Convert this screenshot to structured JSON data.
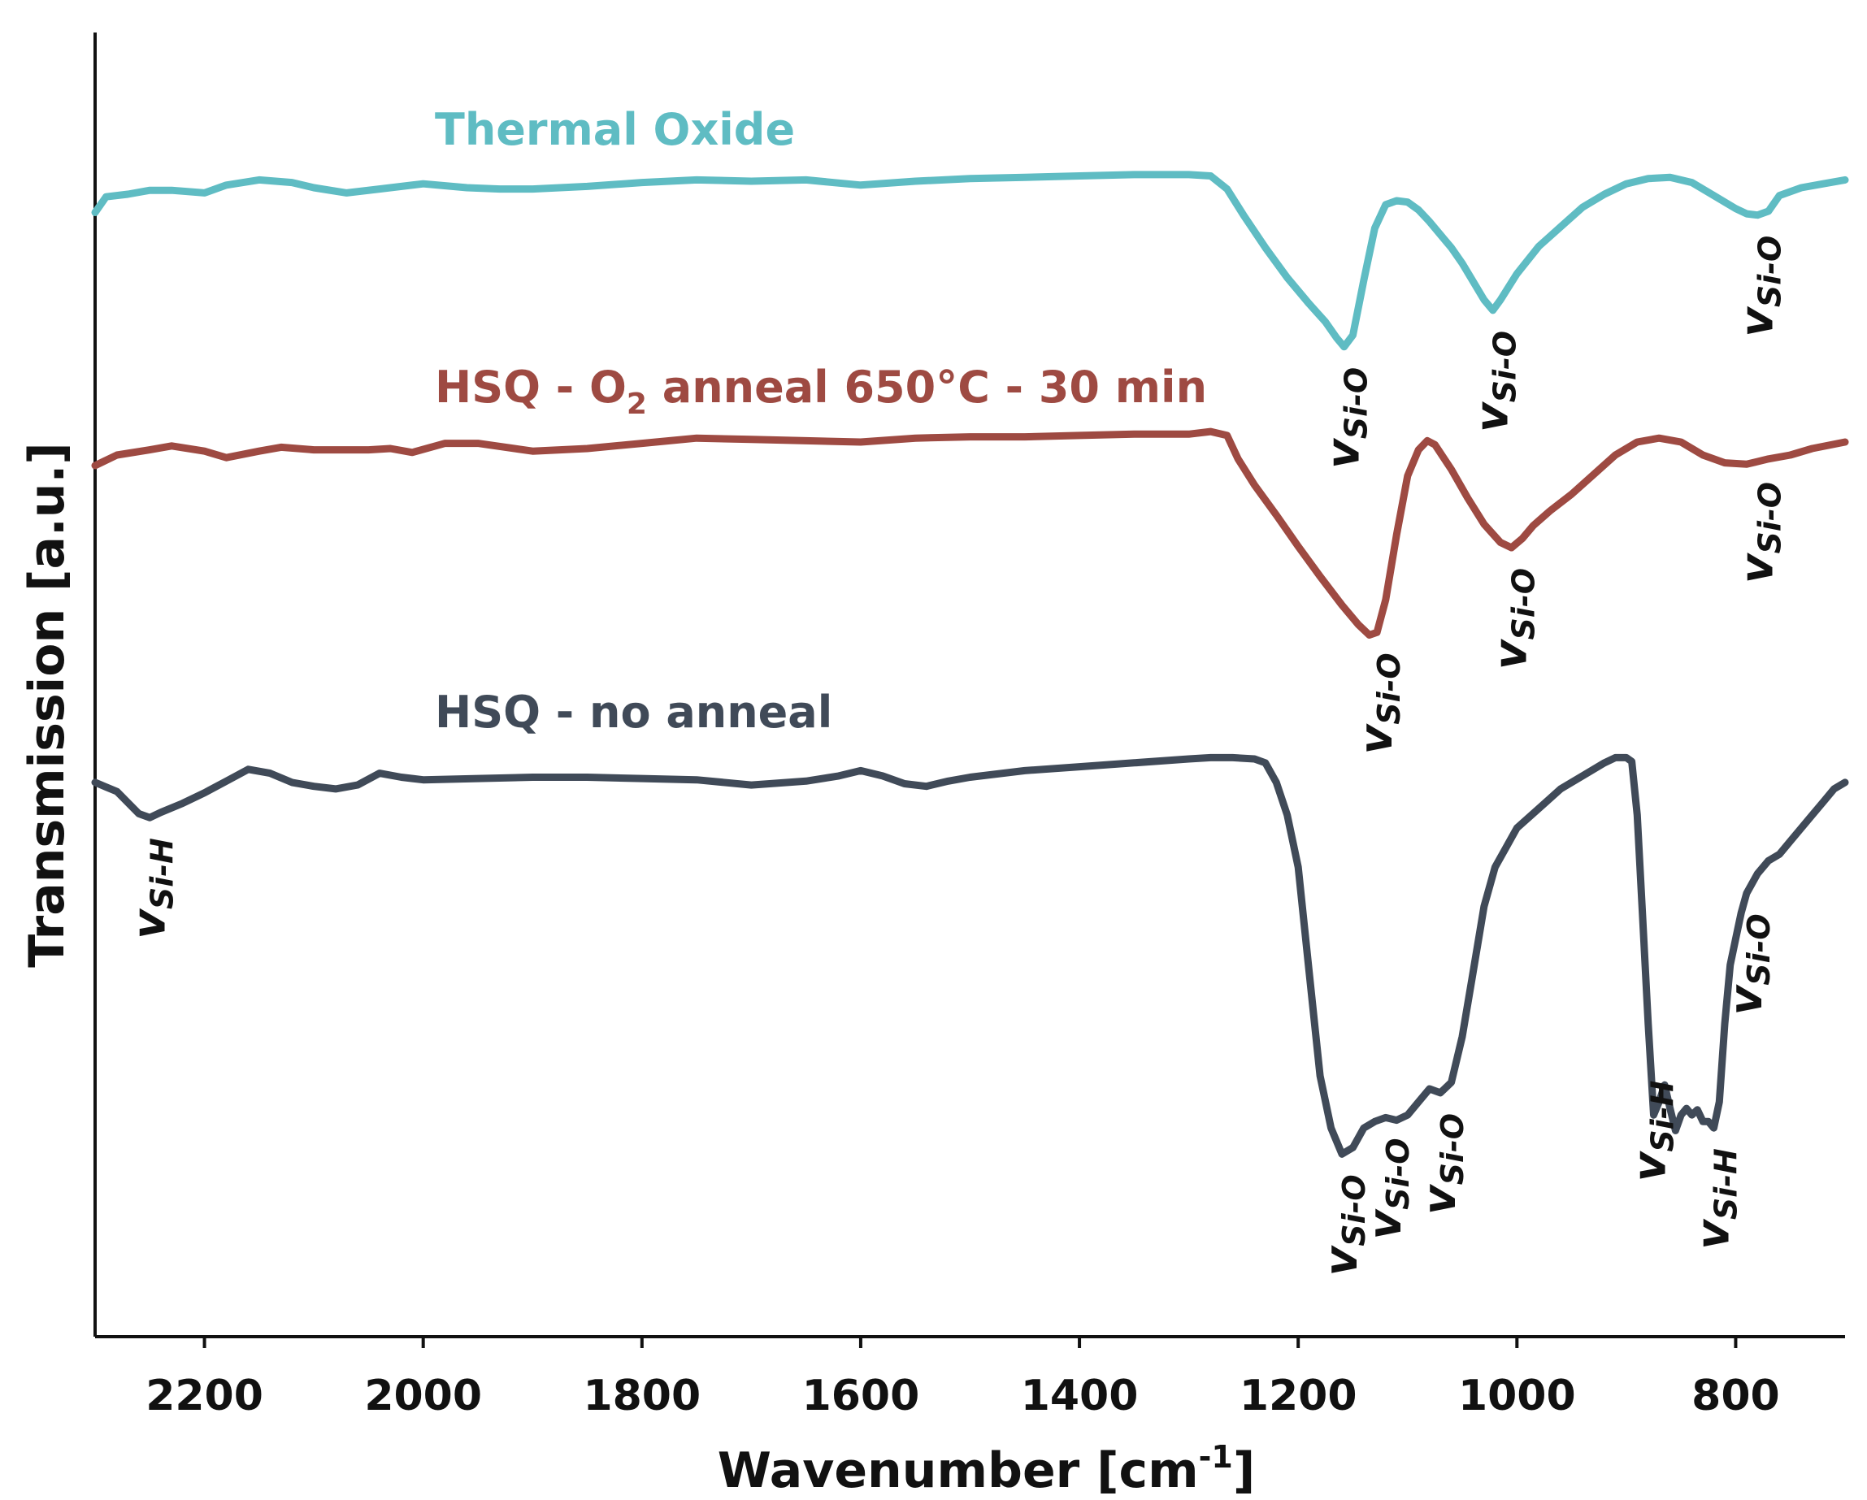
{
  "chart_data": {
    "type": "line",
    "xlabel": "Wavenumber [cm",
    "xlabel_sup": "-1",
    "xlabel_end": "]",
    "ylabel": "Transmission [a.u.]",
    "xlim": [
      2300,
      700
    ],
    "ylim": [
      0,
      100
    ],
    "xticks": [
      2200,
      2000,
      1800,
      1600,
      1400,
      1200,
      1000,
      800
    ],
    "xtick_labels": [
      "2200",
      "2000",
      "1800",
      "1600",
      "1400",
      "1200",
      "1000",
      "800"
    ],
    "series": [
      {
        "name": "Thermal Oxide",
        "label_parts": [
          "Thermal Oxide"
        ],
        "color": "#5fbcc3",
        "points": [
          [
            2300,
            86.2
          ],
          [
            2290,
            87.4
          ],
          [
            2270,
            87.6
          ],
          [
            2250,
            87.9
          ],
          [
            2230,
            87.9
          ],
          [
            2200,
            87.7
          ],
          [
            2180,
            88.3
          ],
          [
            2150,
            88.7
          ],
          [
            2120,
            88.5
          ],
          [
            2100,
            88.1
          ],
          [
            2070,
            87.7
          ],
          [
            2040,
            88.0
          ],
          [
            2000,
            88.4
          ],
          [
            1960,
            88.1
          ],
          [
            1930,
            88.0
          ],
          [
            1900,
            88.0
          ],
          [
            1850,
            88.2
          ],
          [
            1800,
            88.5
          ],
          [
            1750,
            88.7
          ],
          [
            1700,
            88.6
          ],
          [
            1650,
            88.7
          ],
          [
            1600,
            88.3
          ],
          [
            1550,
            88.6
          ],
          [
            1500,
            88.8
          ],
          [
            1450,
            88.9
          ],
          [
            1400,
            89.0
          ],
          [
            1350,
            89.1
          ],
          [
            1300,
            89.1
          ],
          [
            1280,
            89.0
          ],
          [
            1265,
            88.0
          ],
          [
            1250,
            86.0
          ],
          [
            1230,
            83.5
          ],
          [
            1210,
            81.2
          ],
          [
            1190,
            79.2
          ],
          [
            1175,
            77.8
          ],
          [
            1165,
            76.6
          ],
          [
            1158,
            75.9
          ],
          [
            1150,
            76.8
          ],
          [
            1140,
            81.0
          ],
          [
            1130,
            85.0
          ],
          [
            1120,
            86.8
          ],
          [
            1110,
            87.1
          ],
          [
            1100,
            87.0
          ],
          [
            1090,
            86.4
          ],
          [
            1080,
            85.5
          ],
          [
            1070,
            84.5
          ],
          [
            1060,
            83.5
          ],
          [
            1050,
            82.3
          ],
          [
            1040,
            80.9
          ],
          [
            1030,
            79.5
          ],
          [
            1022,
            78.7
          ],
          [
            1015,
            79.5
          ],
          [
            1000,
            81.5
          ],
          [
            980,
            83.6
          ],
          [
            960,
            85.1
          ],
          [
            940,
            86.6
          ],
          [
            920,
            87.6
          ],
          [
            900,
            88.4
          ],
          [
            880,
            88.8
          ],
          [
            860,
            88.9
          ],
          [
            840,
            88.5
          ],
          [
            820,
            87.5
          ],
          [
            800,
            86.5
          ],
          [
            790,
            86.1
          ],
          [
            780,
            86.0
          ],
          [
            770,
            86.3
          ],
          [
            760,
            87.5
          ],
          [
            740,
            88.1
          ],
          [
            720,
            88.4
          ],
          [
            700,
            88.7
          ]
        ]
      },
      {
        "name": "HSQ - O2 anneal 650°C - 30 min",
        "label_parts": [
          "HSQ - O",
          "2",
          " anneal 650°C - 30 min"
        ],
        "color": "#9e4a42",
        "points": [
          [
            2300,
            66.8
          ],
          [
            2280,
            67.6
          ],
          [
            2250,
            68.0
          ],
          [
            2230,
            68.3
          ],
          [
            2200,
            67.9
          ],
          [
            2180,
            67.4
          ],
          [
            2150,
            67.9
          ],
          [
            2130,
            68.2
          ],
          [
            2100,
            68.0
          ],
          [
            2050,
            68.0
          ],
          [
            2030,
            68.1
          ],
          [
            2010,
            67.8
          ],
          [
            1980,
            68.5
          ],
          [
            1950,
            68.5
          ],
          [
            1900,
            67.9
          ],
          [
            1850,
            68.1
          ],
          [
            1800,
            68.5
          ],
          [
            1750,
            68.9
          ],
          [
            1700,
            68.8
          ],
          [
            1650,
            68.7
          ],
          [
            1600,
            68.6
          ],
          [
            1550,
            68.9
          ],
          [
            1500,
            69.0
          ],
          [
            1450,
            69.0
          ],
          [
            1400,
            69.1
          ],
          [
            1350,
            69.2
          ],
          [
            1300,
            69.2
          ],
          [
            1280,
            69.4
          ],
          [
            1265,
            69.1
          ],
          [
            1255,
            67.3
          ],
          [
            1240,
            65.3
          ],
          [
            1220,
            63.0
          ],
          [
            1200,
            60.6
          ],
          [
            1180,
            58.3
          ],
          [
            1160,
            56.1
          ],
          [
            1145,
            54.6
          ],
          [
            1135,
            53.8
          ],
          [
            1128,
            54.0
          ],
          [
            1120,
            56.5
          ],
          [
            1110,
            61.5
          ],
          [
            1100,
            66.0
          ],
          [
            1090,
            68.0
          ],
          [
            1082,
            68.7
          ],
          [
            1075,
            68.4
          ],
          [
            1060,
            66.5
          ],
          [
            1045,
            64.3
          ],
          [
            1030,
            62.3
          ],
          [
            1015,
            60.9
          ],
          [
            1005,
            60.5
          ],
          [
            995,
            61.2
          ],
          [
            985,
            62.2
          ],
          [
            970,
            63.3
          ],
          [
            950,
            64.6
          ],
          [
            930,
            66.1
          ],
          [
            910,
            67.6
          ],
          [
            890,
            68.6
          ],
          [
            870,
            68.9
          ],
          [
            850,
            68.6
          ],
          [
            830,
            67.6
          ],
          [
            810,
            67.0
          ],
          [
            790,
            66.9
          ],
          [
            770,
            67.3
          ],
          [
            750,
            67.6
          ],
          [
            730,
            68.1
          ],
          [
            700,
            68.6
          ]
        ]
      },
      {
        "name": "HSQ - no anneal",
        "label_parts": [
          "HSQ - no anneal"
        ],
        "color": "#404a58",
        "points": [
          [
            2300,
            42.5
          ],
          [
            2280,
            41.8
          ],
          [
            2260,
            40.1
          ],
          [
            2250,
            39.8
          ],
          [
            2240,
            40.2
          ],
          [
            2220,
            40.9
          ],
          [
            2200,
            41.7
          ],
          [
            2180,
            42.6
          ],
          [
            2160,
            43.5
          ],
          [
            2140,
            43.2
          ],
          [
            2120,
            42.5
          ],
          [
            2100,
            42.2
          ],
          [
            2080,
            42.0
          ],
          [
            2060,
            42.3
          ],
          [
            2040,
            43.2
          ],
          [
            2020,
            42.9
          ],
          [
            2000,
            42.7
          ],
          [
            1950,
            42.8
          ],
          [
            1900,
            42.9
          ],
          [
            1850,
            42.9
          ],
          [
            1800,
            42.8
          ],
          [
            1750,
            42.7
          ],
          [
            1700,
            42.3
          ],
          [
            1650,
            42.6
          ],
          [
            1620,
            43.0
          ],
          [
            1600,
            43.4
          ],
          [
            1580,
            43.0
          ],
          [
            1560,
            42.4
          ],
          [
            1540,
            42.2
          ],
          [
            1520,
            42.6
          ],
          [
            1500,
            42.9
          ],
          [
            1450,
            43.4
          ],
          [
            1400,
            43.7
          ],
          [
            1350,
            44.0
          ],
          [
            1300,
            44.3
          ],
          [
            1280,
            44.4
          ],
          [
            1260,
            44.4
          ],
          [
            1240,
            44.3
          ],
          [
            1230,
            44.0
          ],
          [
            1220,
            42.5
          ],
          [
            1210,
            40.0
          ],
          [
            1200,
            36.0
          ],
          [
            1190,
            28.0
          ],
          [
            1180,
            20.0
          ],
          [
            1170,
            16.0
          ],
          [
            1160,
            14.0
          ],
          [
            1150,
            14.5
          ],
          [
            1140,
            16.0
          ],
          [
            1130,
            16.5
          ],
          [
            1120,
            16.8
          ],
          [
            1110,
            16.6
          ],
          [
            1100,
            17.0
          ],
          [
            1090,
            18.0
          ],
          [
            1080,
            19.0
          ],
          [
            1070,
            18.7
          ],
          [
            1060,
            19.5
          ],
          [
            1050,
            23.0
          ],
          [
            1040,
            28.0
          ],
          [
            1030,
            33.0
          ],
          [
            1020,
            36.0
          ],
          [
            1010,
            37.5
          ],
          [
            1000,
            39.0
          ],
          [
            980,
            40.5
          ],
          [
            960,
            42.0
          ],
          [
            940,
            43.0
          ],
          [
            920,
            44.0
          ],
          [
            910,
            44.4
          ],
          [
            900,
            44.4
          ],
          [
            895,
            44.1
          ],
          [
            890,
            40.0
          ],
          [
            885,
            32.0
          ],
          [
            880,
            24.0
          ],
          [
            875,
            17.0
          ],
          [
            870,
            18.0
          ],
          [
            865,
            19.3
          ],
          [
            860,
            17.5
          ],
          [
            855,
            15.8
          ],
          [
            850,
            17.0
          ],
          [
            845,
            17.5
          ],
          [
            840,
            17.0
          ],
          [
            835,
            17.4
          ],
          [
            830,
            16.5
          ],
          [
            825,
            16.5
          ],
          [
            820,
            16.0
          ],
          [
            815,
            18.0
          ],
          [
            810,
            24.0
          ],
          [
            805,
            28.5
          ],
          [
            800,
            30.5
          ],
          [
            795,
            32.5
          ],
          [
            790,
            34.0
          ],
          [
            780,
            35.5
          ],
          [
            770,
            36.5
          ],
          [
            760,
            37.0
          ],
          [
            750,
            38.0
          ],
          [
            740,
            39.0
          ],
          [
            730,
            40.0
          ],
          [
            720,
            41.0
          ],
          [
            710,
            42.0
          ],
          [
            700,
            42.5
          ]
        ]
      }
    ],
    "annotations": [
      {
        "main": "v",
        "sub": "Si-O",
        "x": 1158,
        "series": "Thermal Oxide"
      },
      {
        "main": "v",
        "sub": "Si-O",
        "x": 1022,
        "series": "Thermal Oxide"
      },
      {
        "main": "v",
        "sub": "Si-O",
        "x": 780,
        "series": "Thermal Oxide"
      },
      {
        "main": "v",
        "sub": "Si-O",
        "x": 1128,
        "series": "HSQ - O2 anneal 650°C - 30 min"
      },
      {
        "main": "v",
        "sub": "Si-O",
        "x": 1005,
        "series": "HSQ - O2 anneal 650°C - 30 min"
      },
      {
        "main": "v",
        "sub": "Si-O",
        "x": 780,
        "series": "HSQ - O2 anneal 650°C - 30 min"
      },
      {
        "main": "v",
        "sub": "Si-H",
        "x": 2250,
        "series": "HSQ - no anneal"
      },
      {
        "main": "v",
        "sub": "Si-O",
        "x": 1160,
        "series": "HSQ - no anneal"
      },
      {
        "main": "v",
        "sub": "Si-O",
        "x": 1120,
        "series": "HSQ - no anneal"
      },
      {
        "main": "v",
        "sub": "Si-O",
        "x": 1070,
        "series": "HSQ - no anneal"
      },
      {
        "main": "v",
        "sub": "Si-H",
        "x": 878,
        "series": "HSQ - no anneal"
      },
      {
        "main": "v",
        "sub": "Si-H",
        "x": 820,
        "series": "HSQ - no anneal"
      },
      {
        "main": "v",
        "sub": "Si-O",
        "x": 790,
        "series": "HSQ - no anneal"
      }
    ]
  }
}
